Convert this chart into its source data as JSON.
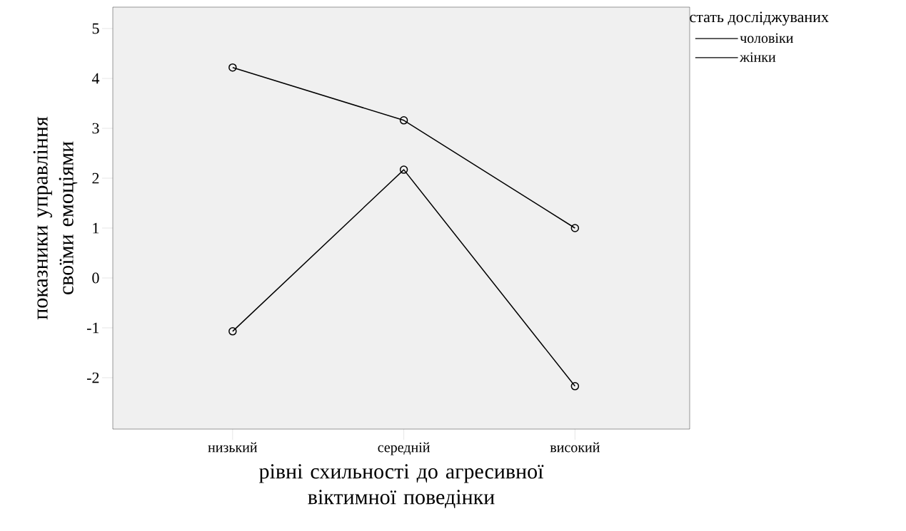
{
  "chart_data": {
    "type": "line",
    "xlabel": "рівні схильності до агресивної віктимної поведінки",
    "ylabel": "показники управління своїми емоціями",
    "legend_title": "стать досліджуваних",
    "categories": [
      "низький",
      "середній",
      "високий"
    ],
    "series": [
      {
        "name": "чоловіки",
        "color": "#000000",
        "values": [
          4.22,
          3.16,
          1.0
        ]
      },
      {
        "name": "жінки",
        "color": "#000000",
        "values": [
          -1.07,
          2.17,
          -2.17
        ]
      }
    ],
    "ylim": [
      -3.03,
      5.43
    ],
    "yticks": [
      -2,
      -1,
      0,
      1,
      2,
      3,
      4,
      5
    ],
    "grid": false,
    "legend": "top right",
    "marker": "circle",
    "line_style": "solid"
  }
}
